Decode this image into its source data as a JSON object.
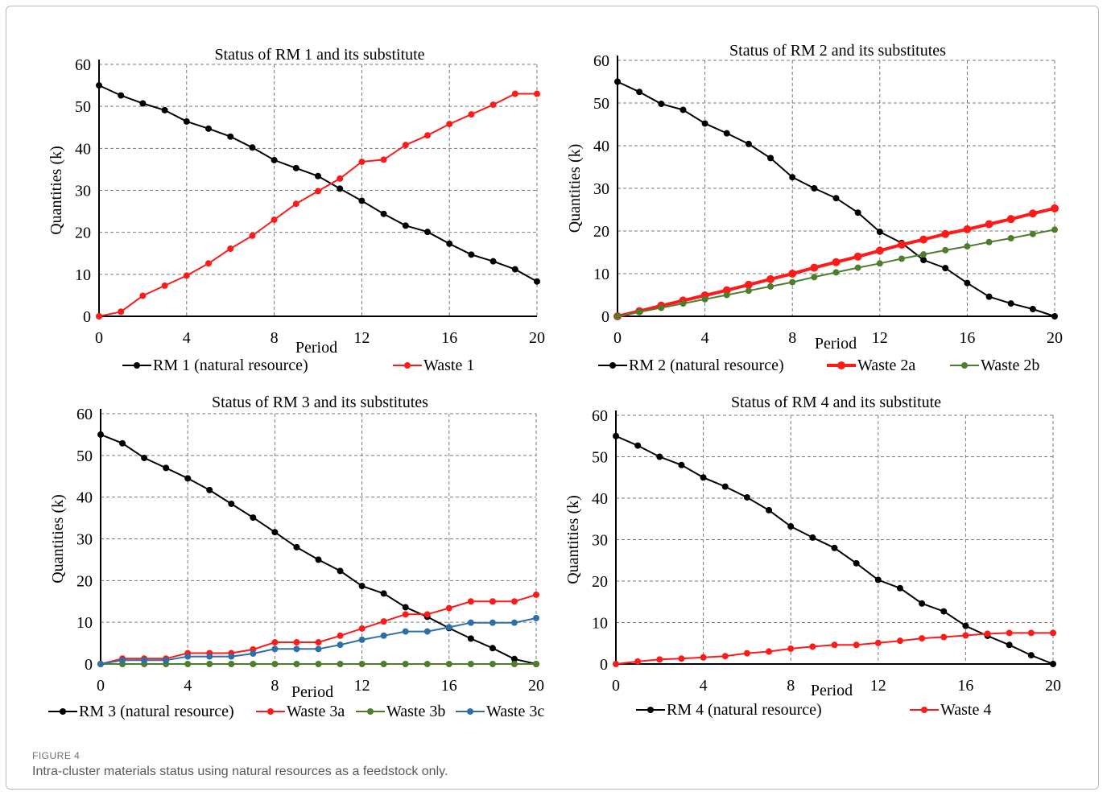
{
  "figure": {
    "label": "FIGURE 4",
    "caption": "Intra-cluster materials status using natural resources as a feedstock only."
  },
  "colors": {
    "black": "#000000",
    "red": "#ff1a1a",
    "green": "#4e7d2e",
    "blue": "#2e6fa8"
  },
  "chart_data": [
    {
      "type": "line",
      "title": "Status of RM 1 and its substitute",
      "xlabel": "Period",
      "ylabel": "Quantities (k)",
      "xlim": [
        0,
        20
      ],
      "ylim": [
        0,
        60
      ],
      "xticks": [
        0,
        4,
        8,
        12,
        16,
        20
      ],
      "yticks": [
        0,
        10,
        20,
        30,
        40,
        50,
        60
      ],
      "grid": true,
      "legend": "bottom",
      "x": [
        0,
        1,
        2,
        3,
        4,
        5,
        6,
        7,
        8,
        9,
        10,
        11,
        12,
        13,
        14,
        15,
        16,
        17,
        18,
        19,
        20
      ],
      "series": [
        {
          "name": "RM 1 (natural resource)",
          "color": "#000000",
          "values": [
            55,
            52.6,
            50.7,
            49.1,
            46.4,
            44.7,
            42.8,
            40.2,
            37.2,
            35.3,
            33.4,
            30.4,
            27.5,
            24.4,
            21.6,
            20.1,
            17.3,
            14.7,
            13.1,
            11.2,
            8.3
          ]
        },
        {
          "name": "Waste 1",
          "color": "#ff1a1a",
          "values": [
            0,
            1.1,
            4.9,
            7.3,
            9.7,
            12.6,
            16.1,
            19.2,
            23,
            26.8,
            29.8,
            32.8,
            36.8,
            37.3,
            40.8,
            43.1,
            45.8,
            48.1,
            50.4,
            53,
            53
          ]
        }
      ]
    },
    {
      "type": "line",
      "title": "Status of RM 2 and its substitutes",
      "xlabel": "Period",
      "ylabel": "Quantities (k)",
      "xlim": [
        0,
        20
      ],
      "ylim": [
        0,
        60
      ],
      "xticks": [
        0,
        4,
        8,
        12,
        16,
        20
      ],
      "yticks": [
        0,
        10,
        20,
        30,
        40,
        50,
        60
      ],
      "grid": true,
      "legend": "bottom",
      "x": [
        0,
        1,
        2,
        3,
        4,
        5,
        6,
        7,
        8,
        9,
        10,
        11,
        12,
        13,
        14,
        15,
        16,
        17,
        18,
        19,
        20
      ],
      "series": [
        {
          "name": "RM 2 (natural resource)",
          "color": "#000000",
          "values": [
            55,
            52.6,
            49.8,
            48.4,
            45.2,
            42.9,
            40.4,
            37.1,
            32.6,
            30,
            27.7,
            24.3,
            19.8,
            17.2,
            13.2,
            11.3,
            7.8,
            4.6,
            3,
            1.7,
            0
          ]
        },
        {
          "name": "Waste 2a",
          "color": "#ff1a1a",
          "values": [
            0,
            1.2,
            2.5,
            3.7,
            4.9,
            6.1,
            7.4,
            8.7,
            10,
            11.4,
            12.7,
            14,
            15.4,
            16.8,
            18,
            19.3,
            20.4,
            21.6,
            22.8,
            24.1,
            25.3
          ]
        },
        {
          "name": "Waste 2b",
          "color": "#4e7d2e",
          "values": [
            0,
            1,
            2,
            3,
            4,
            5,
            6,
            7,
            8,
            9.2,
            10.3,
            11.4,
            12.4,
            13.5,
            14.5,
            15.5,
            16.4,
            17.4,
            18.3,
            19.3,
            20.3
          ]
        }
      ]
    },
    {
      "type": "line",
      "title": "Status of RM 3 and its substitutes",
      "xlabel": "Period",
      "ylabel": "Quantities (k)",
      "xlim": [
        0,
        20
      ],
      "ylim": [
        0,
        60
      ],
      "xticks": [
        0,
        4,
        8,
        12,
        16,
        20
      ],
      "yticks": [
        0,
        10,
        20,
        30,
        40,
        50,
        60
      ],
      "grid": true,
      "legend": "bottom",
      "x": [
        0,
        1,
        2,
        3,
        4,
        5,
        6,
        7,
        8,
        9,
        10,
        11,
        12,
        13,
        14,
        15,
        16,
        17,
        18,
        19,
        20
      ],
      "series": [
        {
          "name": "RM 3 (natural resource)",
          "color": "#000000",
          "values": [
            55,
            52.9,
            49.4,
            47,
            44.5,
            41.7,
            38.4,
            35.1,
            31.6,
            28,
            25,
            22.3,
            18.7,
            16.9,
            13.6,
            11.3,
            8.6,
            6.1,
            3.8,
            1.2,
            0
          ]
        },
        {
          "name": "Waste 3a",
          "color": "#ff1a1a",
          "values": [
            0,
            1.3,
            1.3,
            1.3,
            2.6,
            2.6,
            2.6,
            3.5,
            5.2,
            5.2,
            5.2,
            6.8,
            8.5,
            10.2,
            11.9,
            11.9,
            13.4,
            15,
            15,
            15,
            16.6
          ]
        },
        {
          "name": "Waste 3b",
          "color": "#4e7d2e",
          "values": [
            0,
            0,
            0,
            0,
            0,
            0,
            0,
            0,
            0,
            0,
            0,
            0,
            0,
            0,
            0,
            0,
            0,
            0,
            0,
            0,
            0
          ]
        },
        {
          "name": "Waste 3c",
          "color": "#2e6fa8",
          "values": [
            0,
            0.9,
            0.9,
            0.9,
            1.8,
            1.8,
            1.8,
            2.5,
            3.6,
            3.6,
            3.6,
            4.6,
            5.8,
            6.8,
            7.8,
            7.8,
            8.8,
            9.9,
            9.9,
            9.9,
            11
          ]
        }
      ]
    },
    {
      "type": "line",
      "title": "Status of RM 4 and its substitute",
      "xlabel": "Period",
      "ylabel": "Quantities (k)",
      "xlim": [
        0,
        20
      ],
      "ylim": [
        0,
        60
      ],
      "xticks": [
        0,
        4,
        8,
        12,
        16,
        20
      ],
      "yticks": [
        0,
        10,
        20,
        30,
        40,
        50,
        60
      ],
      "grid": true,
      "legend": "bottom",
      "x": [
        0,
        1,
        2,
        3,
        4,
        5,
        6,
        7,
        8,
        9,
        10,
        11,
        12,
        13,
        14,
        15,
        16,
        17,
        18,
        19,
        20
      ],
      "series": [
        {
          "name": "RM 4 (natural resource)",
          "color": "#000000",
          "values": [
            55,
            52.7,
            50,
            48,
            45,
            42.8,
            40.2,
            37.1,
            33.2,
            30.5,
            28,
            24.3,
            20.3,
            18.3,
            14.6,
            12.7,
            9.2,
            6.8,
            4.6,
            2.1,
            0
          ]
        },
        {
          "name": "Waste 4",
          "color": "#ff1a1a",
          "values": [
            0,
            0.6,
            1.1,
            1.3,
            1.6,
            1.9,
            2.6,
            3,
            3.7,
            4.2,
            4.6,
            4.6,
            5.1,
            5.6,
            6.2,
            6.5,
            6.9,
            7.3,
            7.5,
            7.5,
            7.5
          ]
        }
      ]
    }
  ]
}
